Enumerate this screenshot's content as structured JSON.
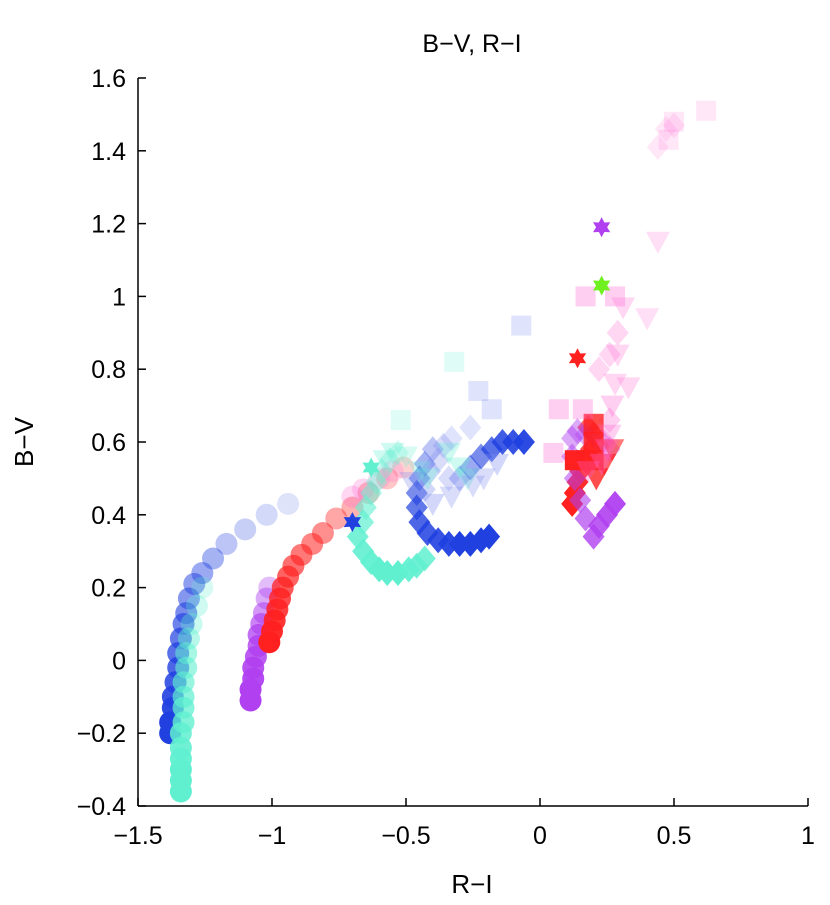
{
  "chart_data": {
    "type": "scatter",
    "title": "B−V, R−I",
    "xlabel": "R−I",
    "ylabel": "B−V",
    "xlim": [
      -1.5,
      1
    ],
    "ylim": [
      -0.4,
      1.6
    ],
    "xticks": [
      -1.5,
      -1,
      -0.5,
      0,
      0.5,
      1
    ],
    "xtick_labels": [
      "−1.5",
      "−1",
      "−0.5",
      "0",
      "0.5",
      "1"
    ],
    "yticks": [
      -0.4,
      -0.2,
      0,
      0.2,
      0.4,
      0.6,
      0.8,
      1,
      1.2,
      1.4,
      1.6
    ],
    "ytick_labels": [
      "−0.4",
      "−0.2",
      "0",
      "0.2",
      "0.4",
      "0.6",
      "0.8",
      "1",
      "1.2",
      "1.4",
      "1.6"
    ],
    "grid": false,
    "series": [
      {
        "marker": "circle",
        "color": "#2040e0",
        "points": [
          [
            -1.38,
            -0.2
          ],
          [
            -1.38,
            -0.17
          ],
          [
            -1.37,
            -0.13
          ],
          [
            -1.37,
            -0.1
          ],
          [
            -1.36,
            -0.06
          ],
          [
            -1.35,
            -0.02
          ],
          [
            -1.35,
            0.02
          ],
          [
            -1.34,
            0.06
          ],
          [
            -1.33,
            0.1
          ],
          [
            -1.32,
            0.13
          ],
          [
            -1.31,
            0.17
          ],
          [
            -1.29,
            0.21
          ],
          [
            -1.26,
            0.24
          ],
          [
            -1.22,
            0.28
          ],
          [
            -1.17,
            0.32
          ],
          [
            -1.1,
            0.36
          ],
          [
            -1.02,
            0.4
          ],
          [
            -0.94,
            0.43
          ]
        ],
        "alpha": [
          1,
          1,
          0.95,
          0.9,
          0.85,
          0.8,
          0.75,
          0.7,
          0.65,
          0.6,
          0.55,
          0.5,
          0.45,
          0.4,
          0.3,
          0.25,
          0.2,
          0.15
        ]
      },
      {
        "marker": "circle",
        "color": "#60f0d0",
        "points": [
          [
            -1.34,
            -0.36
          ],
          [
            -1.34,
            -0.33
          ],
          [
            -1.34,
            -0.3
          ],
          [
            -1.34,
            -0.27
          ],
          [
            -1.34,
            -0.24
          ],
          [
            -1.34,
            -0.2
          ],
          [
            -1.33,
            -0.17
          ],
          [
            -1.33,
            -0.13
          ],
          [
            -1.33,
            -0.1
          ],
          [
            -1.33,
            -0.06
          ],
          [
            -1.32,
            -0.02
          ],
          [
            -1.32,
            0.02
          ],
          [
            -1.31,
            0.06
          ],
          [
            -1.3,
            0.1
          ],
          [
            -1.28,
            0.15
          ],
          [
            -1.26,
            0.2
          ]
        ],
        "alpha": [
          1,
          1,
          1,
          0.95,
          0.9,
          0.85,
          0.8,
          0.75,
          0.7,
          0.65,
          0.6,
          0.55,
          0.45,
          0.35,
          0.3,
          0.25
        ]
      },
      {
        "marker": "circle",
        "color": "#b040f0",
        "points": [
          [
            -1.08,
            -0.11
          ],
          [
            -1.08,
            -0.08
          ],
          [
            -1.07,
            -0.05
          ],
          [
            -1.07,
            -0.02
          ],
          [
            -1.06,
            0.01
          ],
          [
            -1.05,
            0.04
          ],
          [
            -1.05,
            0.07
          ],
          [
            -1.04,
            0.1
          ],
          [
            -1.03,
            0.13
          ],
          [
            -1.02,
            0.17
          ],
          [
            -1.01,
            0.2
          ]
        ],
        "alpha": [
          1,
          1,
          0.95,
          0.9,
          0.85,
          0.8,
          0.75,
          0.65,
          0.55,
          0.45,
          0.35
        ]
      },
      {
        "marker": "circle",
        "color": "#ff2020",
        "points": [
          [
            -1.01,
            0.05
          ],
          [
            -1.0,
            0.08
          ],
          [
            -0.99,
            0.11
          ],
          [
            -0.98,
            0.14
          ],
          [
            -0.97,
            0.17
          ],
          [
            -0.96,
            0.2
          ],
          [
            -0.94,
            0.23
          ],
          [
            -0.92,
            0.26
          ],
          [
            -0.89,
            0.29
          ],
          [
            -0.85,
            0.32
          ],
          [
            -0.81,
            0.35
          ],
          [
            -0.76,
            0.39
          ],
          [
            -0.7,
            0.42
          ],
          [
            -0.64,
            0.46
          ],
          [
            -0.57,
            0.5
          ],
          [
            -0.51,
            0.53
          ]
        ],
        "alpha": [
          1,
          0.95,
          0.9,
          0.85,
          0.8,
          0.75,
          0.7,
          0.65,
          0.6,
          0.55,
          0.5,
          0.4,
          0.35,
          0.3,
          0.25,
          0.2
        ]
      },
      {
        "marker": "circle",
        "color": "#ff60d0",
        "points": [
          [
            -0.7,
            0.45
          ],
          [
            -0.66,
            0.47
          ],
          [
            -0.6,
            0.5
          ],
          [
            -0.55,
            0.52
          ]
        ],
        "alpha": [
          0.25,
          0.25,
          0.2,
          0.2
        ]
      },
      {
        "marker": "diamond",
        "color": "#60f0d0",
        "points": [
          [
            -0.68,
            0.34
          ],
          [
            -0.66,
            0.3
          ],
          [
            -0.63,
            0.27
          ],
          [
            -0.6,
            0.25
          ],
          [
            -0.57,
            0.24
          ],
          [
            -0.53,
            0.24
          ],
          [
            -0.49,
            0.25
          ],
          [
            -0.46,
            0.26
          ],
          [
            -0.43,
            0.28
          ],
          [
            -0.66,
            0.38
          ],
          [
            -0.65,
            0.42
          ],
          [
            -0.63,
            0.46
          ],
          [
            -0.61,
            0.49
          ],
          [
            -0.59,
            0.52
          ],
          [
            -0.56,
            0.55
          ],
          [
            -0.53,
            0.57
          ]
        ],
        "alpha": [
          0.85,
          0.9,
          0.95,
          1,
          1,
          1,
          0.95,
          0.9,
          0.85,
          0.7,
          0.6,
          0.5,
          0.4,
          0.35,
          0.3,
          0.25
        ]
      },
      {
        "marker": "diamond",
        "color": "#2040e0",
        "points": [
          [
            -0.45,
            0.38
          ],
          [
            -0.42,
            0.35
          ],
          [
            -0.38,
            0.33
          ],
          [
            -0.34,
            0.32
          ],
          [
            -0.3,
            0.32
          ],
          [
            -0.26,
            0.32
          ],
          [
            -0.22,
            0.33
          ],
          [
            -0.19,
            0.34
          ],
          [
            -0.46,
            0.42
          ],
          [
            -0.46,
            0.46
          ],
          [
            -0.45,
            0.5
          ],
          [
            -0.43,
            0.54
          ],
          [
            -0.4,
            0.58
          ],
          [
            -0.3,
            0.5
          ],
          [
            -0.26,
            0.53
          ],
          [
            -0.22,
            0.56
          ],
          [
            -0.18,
            0.58
          ],
          [
            -0.14,
            0.6
          ],
          [
            -0.1,
            0.6
          ],
          [
            -0.06,
            0.6
          ]
        ],
        "alpha": [
          0.8,
          0.85,
          0.9,
          0.95,
          1,
          1,
          1,
          1,
          0.7,
          0.6,
          0.5,
          0.4,
          0.3,
          0.3,
          0.45,
          0.6,
          0.75,
          0.85,
          0.9,
          0.95
        ]
      },
      {
        "marker": "diamond",
        "color": "#ff2020",
        "points": [
          [
            0.12,
            0.43
          ],
          [
            0.13,
            0.46
          ],
          [
            0.14,
            0.49
          ],
          [
            0.15,
            0.52
          ],
          [
            0.17,
            0.55
          ],
          [
            0.19,
            0.58
          ],
          [
            0.2,
            0.62
          ],
          [
            0.18,
            0.64
          ]
        ],
        "alpha": [
          1,
          1,
          0.95,
          0.9,
          0.85,
          0.8,
          0.75,
          0.7
        ]
      },
      {
        "marker": "diamond",
        "color": "#b040f0",
        "points": [
          [
            0.2,
            0.34
          ],
          [
            0.22,
            0.37
          ],
          [
            0.25,
            0.4
          ],
          [
            0.28,
            0.43
          ],
          [
            0.17,
            0.39
          ],
          [
            0.15,
            0.44
          ],
          [
            0.13,
            0.5
          ],
          [
            0.12,
            0.56
          ],
          [
            0.12,
            0.61
          ],
          [
            0.14,
            0.63
          ],
          [
            0.17,
            0.62
          ],
          [
            0.23,
            0.6
          ],
          [
            0.26,
            0.58
          ]
        ],
        "alpha": [
          0.8,
          0.85,
          0.9,
          0.95,
          0.7,
          0.6,
          0.55,
          0.5,
          0.45,
          0.45,
          0.4,
          0.35,
          0.3
        ]
      },
      {
        "marker": "diamond",
        "color": "#ff60d0",
        "points": [
          [
            0.22,
            0.8
          ],
          [
            0.26,
            0.84
          ],
          [
            0.29,
            0.9
          ],
          [
            0.26,
            0.66
          ],
          [
            0.24,
            0.6
          ],
          [
            0.44,
            1.41
          ],
          [
            0.47,
            1.46
          ],
          [
            0.5,
            1.47
          ]
        ],
        "alpha": [
          0.25,
          0.25,
          0.25,
          0.3,
          0.3,
          0.15,
          0.15,
          0.15
        ]
      },
      {
        "marker": "diamond",
        "color": "#8090f0",
        "points": [
          [
            -0.33,
            0.61
          ],
          [
            -0.26,
            0.64
          ],
          [
            -0.38,
            0.55
          ],
          [
            -0.34,
            0.5
          ],
          [
            -0.41,
            0.52
          ],
          [
            -0.43,
            0.47
          ],
          [
            -0.36,
            0.59
          ]
        ],
        "alpha": [
          0.25,
          0.25,
          0.3,
          0.3,
          0.35,
          0.35,
          0.3
        ]
      },
      {
        "marker": "square",
        "color": "#60f0d0",
        "points": [
          [
            -0.32,
            0.82
          ],
          [
            -0.52,
            0.66
          ]
        ],
        "alpha": [
          0.2,
          0.2
        ]
      },
      {
        "marker": "square",
        "color": "#8090f0",
        "points": [
          [
            -0.07,
            0.92
          ],
          [
            -0.23,
            0.74
          ],
          [
            -0.18,
            0.69
          ]
        ],
        "alpha": [
          0.25,
          0.25,
          0.25
        ]
      },
      {
        "marker": "square",
        "color": "#ff2020",
        "points": [
          [
            0.13,
            0.55
          ],
          [
            0.17,
            0.55
          ],
          [
            0.2,
            0.55
          ],
          [
            0.2,
            0.6
          ],
          [
            0.2,
            0.65
          ]
        ],
        "alpha": [
          1,
          0.95,
          0.9,
          0.85,
          0.8
        ]
      },
      {
        "marker": "square",
        "color": "#ff60d0",
        "points": [
          [
            0.07,
            0.69
          ],
          [
            0.16,
            0.69
          ],
          [
            0.17,
            1.0
          ],
          [
            0.28,
            1.0
          ],
          [
            0.05,
            0.57
          ],
          [
            0.5,
            1.48
          ],
          [
            0.62,
            1.51
          ],
          [
            0.48,
            1.43
          ]
        ],
        "alpha": [
          0.3,
          0.3,
          0.3,
          0.3,
          0.3,
          0.15,
          0.15,
          0.15
        ]
      },
      {
        "marker": "triangle",
        "color": "#60f0d0",
        "points": [
          [
            -0.58,
            0.55
          ],
          [
            -0.55,
            0.57
          ],
          [
            -0.5,
            0.56
          ],
          [
            -0.45,
            0.52
          ],
          [
            -0.42,
            0.5
          ],
          [
            -0.34,
            0.57
          ],
          [
            -0.3,
            0.53
          ],
          [
            -0.27,
            0.5
          ]
        ],
        "alpha": [
          0.3,
          0.3,
          0.25,
          0.25,
          0.3,
          0.3,
          0.3,
          0.3
        ]
      },
      {
        "marker": "triangle",
        "color": "#8090f0",
        "points": [
          [
            -0.21,
            0.5
          ],
          [
            -0.25,
            0.48
          ],
          [
            -0.16,
            0.54
          ],
          [
            -0.4,
            0.43
          ],
          [
            -0.33,
            0.45
          ],
          [
            -0.48,
            0.49
          ]
        ],
        "alpha": [
          0.3,
          0.3,
          0.35,
          0.35,
          0.3,
          0.3
        ]
      },
      {
        "marker": "triangle",
        "color": "#ff2020",
        "points": [
          [
            0.21,
            0.5
          ],
          [
            0.24,
            0.54
          ],
          [
            0.27,
            0.58
          ]
        ],
        "alpha": [
          0.8,
          0.7,
          0.6
        ]
      },
      {
        "marker": "triangle",
        "color": "#ff60d0",
        "points": [
          [
            0.31,
            0.97
          ],
          [
            0.29,
            0.84
          ],
          [
            0.28,
            0.76
          ],
          [
            0.27,
            0.7
          ],
          [
            0.26,
            0.62
          ],
          [
            0.25,
            0.58
          ],
          [
            0.23,
            0.54
          ],
          [
            0.44,
            1.15
          ],
          [
            0.4,
            0.94
          ],
          [
            0.33,
            0.75
          ],
          [
            0.18,
            0.52
          ]
        ],
        "alpha": [
          0.25,
          0.25,
          0.25,
          0.3,
          0.3,
          0.35,
          0.35,
          0.2,
          0.2,
          0.25,
          0.3
        ]
      },
      {
        "marker": "star",
        "color": "#2040e0",
        "points": [
          [
            -0.7,
            0.38
          ]
        ],
        "alpha": [
          1
        ]
      },
      {
        "marker": "star",
        "color": "#60f0d0",
        "points": [
          [
            -0.63,
            0.53
          ]
        ],
        "alpha": [
          1
        ]
      },
      {
        "marker": "star",
        "color": "#ff2020",
        "points": [
          [
            0.14,
            0.83
          ]
        ],
        "alpha": [
          1
        ]
      },
      {
        "marker": "star",
        "color": "#70f020",
        "points": [
          [
            0.23,
            1.03
          ]
        ],
        "alpha": [
          1
        ]
      },
      {
        "marker": "star",
        "color": "#b040f0",
        "points": [
          [
            0.23,
            1.19
          ]
        ],
        "alpha": [
          1
        ]
      }
    ]
  }
}
